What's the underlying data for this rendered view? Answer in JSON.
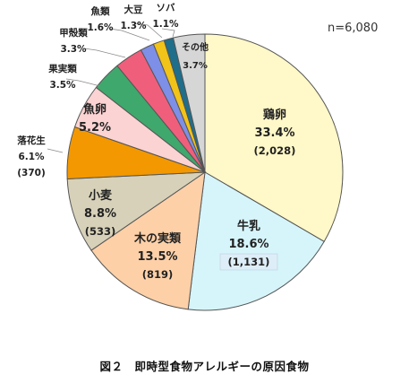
{
  "sample_size": "n=6,080",
  "caption": "図２　即時型食物アレルギーの原因食物",
  "chart_data": {
    "type": "pie",
    "title": "",
    "slices": [
      {
        "name": "鶏卵",
        "percent_label": "33.4%",
        "count_label": "(2,028)",
        "value": 33.4,
        "count": 2028,
        "color": "#fff8c8"
      },
      {
        "name": "牛乳",
        "percent_label": "18.6%",
        "count_label": "(1,131)",
        "value": 18.6,
        "count": 1131,
        "color": "#d6f5fb"
      },
      {
        "name": "木の実類",
        "percent_label": "13.5%",
        "count_label": "(819)",
        "value": 13.5,
        "count": 819,
        "color": "#fdd0a8"
      },
      {
        "name": "小麦",
        "percent_label": "8.8%",
        "count_label": "(533)",
        "value": 8.8,
        "count": 533,
        "color": "#d6d1b8"
      },
      {
        "name": "落花生",
        "percent_label": "6.1%",
        "count_label": "(370)",
        "value": 6.1,
        "count": 370,
        "color": "#f39800"
      },
      {
        "name": "魚卵",
        "percent_label": "5.2%",
        "count_label": "",
        "value": 5.2,
        "color": "#fbd3d3"
      },
      {
        "name": "果実類",
        "percent_label": "3.5%",
        "count_label": "",
        "value": 3.5,
        "color": "#3fa86c"
      },
      {
        "name": "甲殻類",
        "percent_label": "3.3%",
        "count_label": "",
        "value": 3.3,
        "color": "#ef5f7c"
      },
      {
        "name": "魚類",
        "percent_label": "1.6%",
        "count_label": "",
        "value": 1.6,
        "color": "#7d8fe6"
      },
      {
        "name": "大豆",
        "percent_label": "1.3%",
        "count_label": "",
        "value": 1.3,
        "color": "#f2c318"
      },
      {
        "name": "ソバ",
        "percent_label": "1.1%",
        "count_label": "",
        "value": 1.1,
        "color": "#1f6e8a"
      },
      {
        "name": "その他",
        "percent_label": "3.7%",
        "count_label": "",
        "value": 3.7,
        "color": "#d6d6d6"
      }
    ]
  }
}
